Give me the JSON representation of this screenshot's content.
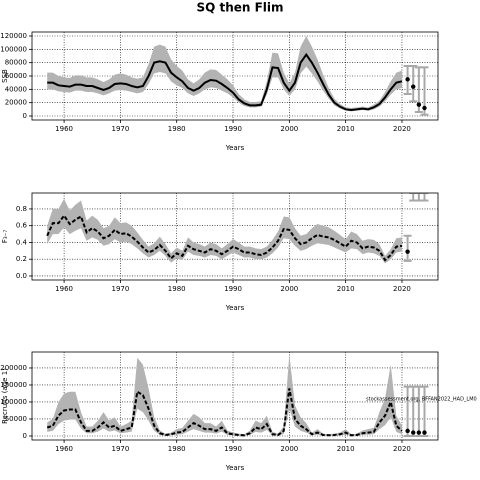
{
  "title": "SQ then Flim",
  "chart_data": [
    {
      "type": "line",
      "xlabel": "Years",
      "ylabel": "SSB",
      "x": [
        1957,
        1958,
        1959,
        1960,
        1961,
        1962,
        1963,
        1964,
        1965,
        1966,
        1967,
        1968,
        1969,
        1970,
        1971,
        1972,
        1973,
        1974,
        1975,
        1976,
        1977,
        1978,
        1979,
        1980,
        1981,
        1982,
        1983,
        1984,
        1985,
        1986,
        1987,
        1988,
        1989,
        1990,
        1991,
        1992,
        1993,
        1994,
        1995,
        1996,
        1997,
        1998,
        1999,
        2000,
        2001,
        2002,
        2003,
        2004,
        2005,
        2006,
        2007,
        2008,
        2009,
        2010,
        2011,
        2012,
        2013,
        2014,
        2015,
        2016,
        2017,
        2018,
        2019,
        2020
      ],
      "values": [
        50000,
        50000,
        46000,
        45000,
        44000,
        47000,
        47000,
        45000,
        45000,
        42000,
        39000,
        42000,
        48000,
        49000,
        48000,
        45000,
        43000,
        45000,
        60000,
        80000,
        82000,
        80000,
        65000,
        58000,
        52000,
        42000,
        38000,
        42000,
        50000,
        54000,
        53000,
        48000,
        42000,
        35000,
        25000,
        19000,
        16000,
        16000,
        17000,
        40000,
        73000,
        72000,
        50000,
        38000,
        50000,
        80000,
        92000,
        80000,
        65000,
        48000,
        32000,
        20000,
        14000,
        10000,
        9000,
        10000,
        11000,
        10000,
        13000,
        18000,
        28000,
        40000,
        50000,
        52000
      ],
      "lower": [
        40000,
        40000,
        37000,
        36000,
        35000,
        38000,
        38000,
        36000,
        36000,
        34000,
        31000,
        34000,
        38000,
        39000,
        38000,
        36000,
        34000,
        36000,
        48000,
        64000,
        66000,
        64000,
        52000,
        46000,
        42000,
        34000,
        30000,
        34000,
        40000,
        43000,
        42000,
        38000,
        34000,
        28000,
        20000,
        15000,
        13000,
        13000,
        14000,
        32000,
        58000,
        58000,
        40000,
        30000,
        40000,
        64000,
        74000,
        64000,
        52000,
        38000,
        26000,
        16000,
        11000,
        8000,
        7000,
        8000,
        9000,
        8000,
        10000,
        14000,
        22000,
        32000,
        40000,
        42000
      ],
      "upper": [
        65000,
        65000,
        60000,
        58000,
        57000,
        61000,
        61000,
        58000,
        58000,
        55000,
        51000,
        55000,
        62000,
        64000,
        62000,
        58000,
        56000,
        58000,
        78000,
        104000,
        107000,
        104000,
        85000,
        75000,
        68000,
        55000,
        49000,
        55000,
        65000,
        70000,
        69000,
        62000,
        55000,
        46000,
        33000,
        25000,
        21000,
        21000,
        22000,
        52000,
        95000,
        94000,
        65000,
        49000,
        65000,
        104000,
        120000,
        104000,
        85000,
        62000,
        42000,
        26000,
        18000,
        13000,
        12000,
        13000,
        14000,
        13000,
        17000,
        23000,
        36000,
        52000,
        65000,
        68000
      ],
      "projection": {
        "x": [
          2021,
          2022,
          2023,
          2024
        ],
        "values": [
          55000,
          44000,
          17000,
          12000
        ],
        "lower": [
          33000,
          22000,
          6000,
          2000
        ],
        "upper": [
          75000,
          75000,
          73000,
          73000
        ]
      },
      "xlim": [
        1954.3,
        2026.4
      ],
      "ylim": [
        -6000,
        126000
      ],
      "xticks": [
        1960,
        1970,
        1980,
        1990,
        2000,
        2010,
        2020
      ],
      "yticks": [
        0,
        20000,
        40000,
        60000,
        80000,
        100000,
        120000
      ],
      "grid": true,
      "linestyle": "solid",
      "line_color": "#000000",
      "band_color": "#b3b3b3",
      "projection_color": "#a8a8a8",
      "point_color": "#000000"
    },
    {
      "type": "line",
      "xlabel": "Years",
      "ylabel": "F₃₋₇",
      "x": [
        1957,
        1958,
        1959,
        1960,
        1961,
        1962,
        1963,
        1964,
        1965,
        1966,
        1967,
        1968,
        1969,
        1970,
        1971,
        1972,
        1973,
        1974,
        1975,
        1976,
        1977,
        1978,
        1979,
        1980,
        1981,
        1982,
        1983,
        1984,
        1985,
        1986,
        1987,
        1988,
        1989,
        1990,
        1991,
        1992,
        1993,
        1994,
        1995,
        1996,
        1997,
        1998,
        1999,
        2000,
        2001,
        2002,
        2003,
        2004,
        2005,
        2006,
        2007,
        2008,
        2009,
        2010,
        2011,
        2012,
        2013,
        2014,
        2015,
        2016,
        2017,
        2018,
        2019,
        2020
      ],
      "values": [
        0.48,
        0.63,
        0.63,
        0.72,
        0.62,
        0.67,
        0.71,
        0.52,
        0.57,
        0.53,
        0.45,
        0.48,
        0.55,
        0.5,
        0.51,
        0.47,
        0.41,
        0.34,
        0.28,
        0.31,
        0.37,
        0.3,
        0.21,
        0.27,
        0.24,
        0.36,
        0.32,
        0.3,
        0.28,
        0.32,
        0.3,
        0.26,
        0.3,
        0.35,
        0.32,
        0.28,
        0.28,
        0.26,
        0.25,
        0.28,
        0.34,
        0.42,
        0.56,
        0.55,
        0.45,
        0.38,
        0.4,
        0.45,
        0.49,
        0.47,
        0.46,
        0.43,
        0.39,
        0.35,
        0.42,
        0.4,
        0.33,
        0.35,
        0.34,
        0.3,
        0.19,
        0.25,
        0.35,
        0.36
      ],
      "lower": [
        0.38,
        0.5,
        0.5,
        0.58,
        0.5,
        0.54,
        0.57,
        0.42,
        0.46,
        0.43,
        0.36,
        0.38,
        0.44,
        0.4,
        0.41,
        0.38,
        0.33,
        0.27,
        0.22,
        0.25,
        0.3,
        0.24,
        0.16,
        0.21,
        0.19,
        0.29,
        0.25,
        0.24,
        0.22,
        0.25,
        0.24,
        0.2,
        0.24,
        0.28,
        0.25,
        0.22,
        0.22,
        0.2,
        0.2,
        0.22,
        0.27,
        0.34,
        0.45,
        0.44,
        0.36,
        0.3,
        0.32,
        0.36,
        0.39,
        0.38,
        0.37,
        0.34,
        0.31,
        0.28,
        0.33,
        0.32,
        0.26,
        0.28,
        0.27,
        0.24,
        0.15,
        0.2,
        0.28,
        0.29
      ],
      "upper": [
        0.6,
        0.8,
        0.8,
        0.92,
        0.78,
        0.85,
        0.9,
        0.66,
        0.72,
        0.67,
        0.57,
        0.6,
        0.7,
        0.63,
        0.64,
        0.6,
        0.52,
        0.43,
        0.35,
        0.39,
        0.47,
        0.38,
        0.27,
        0.34,
        0.3,
        0.46,
        0.4,
        0.38,
        0.35,
        0.4,
        0.38,
        0.33,
        0.38,
        0.44,
        0.4,
        0.35,
        0.35,
        0.33,
        0.32,
        0.35,
        0.43,
        0.53,
        0.71,
        0.7,
        0.57,
        0.48,
        0.5,
        0.57,
        0.62,
        0.6,
        0.58,
        0.54,
        0.49,
        0.44,
        0.53,
        0.5,
        0.42,
        0.44,
        0.43,
        0.38,
        0.24,
        0.32,
        0.45,
        0.46
      ],
      "projection": {
        "x": [
          2021,
          2022,
          2023,
          2024
        ],
        "values": [
          0.29,
          null,
          null,
          null
        ],
        "lower": [
          0.18,
          0.9,
          0.9,
          0.9
        ],
        "upper": [
          0.48,
          0.99,
          0.99,
          0.99
        ]
      },
      "xlim": [
        1954.3,
        2026.4
      ],
      "ylim": [
        -0.048,
        0.99
      ],
      "xticks": [
        1960,
        1970,
        1980,
        1990,
        2000,
        2010,
        2020
      ],
      "yticks": [
        {
          "value": 0,
          "label": "0.0"
        },
        {
          "value": 0.2,
          "label": "0.2"
        },
        {
          "value": 0.4,
          "label": "0.4"
        },
        {
          "value": 0.6,
          "label": "0.6"
        },
        {
          "value": 0.8,
          "label": "0.8"
        }
      ],
      "grid": true,
      "linestyle": "dashed",
      "line_color": "#000000",
      "band_color": "#b3b3b3",
      "projection_color": "#a8a8a8",
      "point_color": "#000000"
    },
    {
      "type": "line",
      "xlabel": "Years",
      "ylabel": "Recruits (age 1)",
      "annotation": "stockassessment.org, BFFAN2022_HAD_LM0",
      "x": [
        1957,
        1958,
        1959,
        1960,
        1961,
        1962,
        1963,
        1964,
        1965,
        1966,
        1967,
        1968,
        1969,
        1970,
        1971,
        1972,
        1973,
        1974,
        1975,
        1976,
        1977,
        1978,
        1979,
        1980,
        1981,
        1982,
        1983,
        1984,
        1985,
        1986,
        1987,
        1988,
        1989,
        1990,
        1991,
        1992,
        1993,
        1994,
        1995,
        1996,
        1997,
        1998,
        1999,
        2000,
        2001,
        2002,
        2003,
        2004,
        2005,
        2006,
        2007,
        2008,
        2009,
        2010,
        2011,
        2012,
        2013,
        2014,
        2015,
        2016,
        2017,
        2018,
        2019,
        2020
      ],
      "values": [
        25000,
        30000,
        60000,
        75000,
        78000,
        78000,
        40000,
        15000,
        15000,
        25000,
        40000,
        25000,
        30000,
        15000,
        20000,
        25000,
        130000,
        120000,
        80000,
        30000,
        8000,
        3000,
        5000,
        10000,
        12000,
        25000,
        38000,
        30000,
        20000,
        20000,
        15000,
        25000,
        8000,
        5000,
        3000,
        2000,
        8000,
        25000,
        20000,
        35000,
        5000,
        3000,
        15000,
        140000,
        50000,
        30000,
        20000,
        5000,
        10000,
        3000,
        2000,
        3000,
        5000,
        10000,
        2000,
        3000,
        8000,
        10000,
        12000,
        40000,
        60000,
        100000,
        30000,
        15000
      ],
      "lower": [
        12000,
        15000,
        35000,
        45000,
        48000,
        48000,
        22000,
        8000,
        8000,
        13000,
        22000,
        13000,
        16000,
        8000,
        10000,
        13000,
        80000,
        70000,
        45000,
        15000,
        3000,
        1000,
        2000,
        4000,
        5000,
        13000,
        20000,
        15000,
        10000,
        10000,
        7000,
        13000,
        3000,
        2000,
        1000,
        500,
        3000,
        12000,
        10000,
        18000,
        2000,
        1000,
        6000,
        80000,
        28000,
        15000,
        10000,
        2000,
        4000,
        1000,
        800,
        1000,
        2000,
        4000,
        800,
        1000,
        3000,
        4000,
        5000,
        20000,
        32000,
        55000,
        12000,
        5000
      ],
      "upper": [
        40000,
        50000,
        100000,
        125000,
        130000,
        130000,
        70000,
        28000,
        28000,
        45000,
        70000,
        45000,
        55000,
        28000,
        35000,
        45000,
        230000,
        210000,
        140000,
        55000,
        16000,
        7000,
        10000,
        20000,
        24000,
        45000,
        65000,
        55000,
        38000,
        38000,
        28000,
        45000,
        16000,
        10000,
        7000,
        5000,
        16000,
        45000,
        38000,
        60000,
        12000,
        7000,
        28000,
        240000,
        90000,
        55000,
        38000,
        10000,
        20000,
        7000,
        5000,
        7000,
        10000,
        20000,
        5000,
        7000,
        16000,
        20000,
        24000,
        70000,
        110000,
        210000,
        60000,
        30000
      ],
      "projection": {
        "x": [
          2021,
          2022,
          2023,
          2024
        ],
        "values": [
          15000,
          10000,
          10000,
          10000
        ],
        "lower": [
          0,
          0,
          0,
          0
        ],
        "upper": [
          145000,
          145000,
          145000,
          145000
        ]
      },
      "xlim": [
        1954.3,
        2026.4
      ],
      "ylim": [
        -11800,
        247000
      ],
      "xticks": [
        1960,
        1970,
        1980,
        1990,
        2000,
        2010,
        2020
      ],
      "yticks": [
        0,
        50000,
        100000,
        150000,
        200000
      ],
      "grid": true,
      "linestyle": "dashed",
      "line_color": "#000000",
      "band_color": "#b3b3b3",
      "projection_color": "#a8a8a8",
      "point_color": "#000000"
    }
  ]
}
